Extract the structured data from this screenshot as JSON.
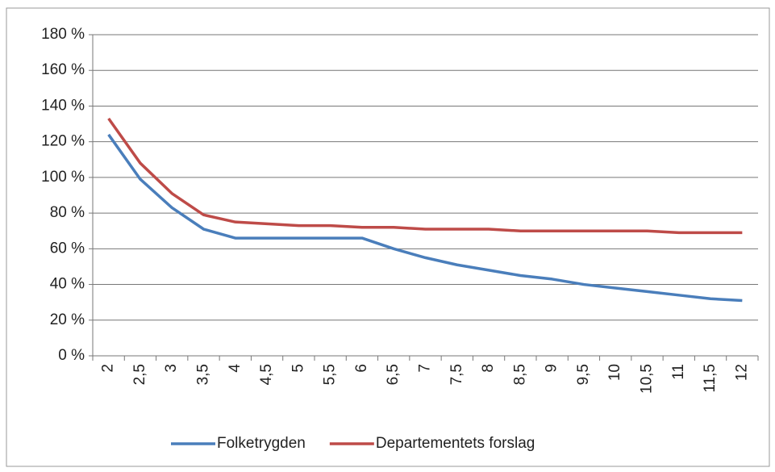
{
  "chart_data": {
    "type": "line",
    "categories": [
      "2",
      "2,5",
      "3",
      "3,5",
      "4",
      "4,5",
      "5",
      "5,5",
      "6",
      "6,5",
      "7",
      "7,5",
      "8",
      "8,5",
      "9",
      "9,5",
      "10",
      "10,5",
      "11",
      "11,5",
      "12"
    ],
    "series": [
      {
        "name": "Folketrygden",
        "color": "#4a7ebb",
        "values": [
          124,
          99,
          83,
          71,
          66,
          66,
          66,
          66,
          66,
          60,
          55,
          51,
          48,
          45,
          43,
          40,
          38,
          36,
          34,
          32,
          31
        ]
      },
      {
        "name": "Departementets forslag",
        "color": "#be4b48",
        "values": [
          133,
          108,
          91,
          79,
          75,
          74,
          73,
          73,
          72,
          72,
          71,
          71,
          71,
          70,
          70,
          70,
          70,
          70,
          69,
          69,
          69
        ]
      }
    ],
    "ylim": [
      0,
      180
    ],
    "yticks": [
      {
        "value": 0,
        "label": "0 %"
      },
      {
        "value": 20,
        "label": "20 %"
      },
      {
        "value": 40,
        "label": "40 %"
      },
      {
        "value": 60,
        "label": "60 %"
      },
      {
        "value": 80,
        "label": "80 %"
      },
      {
        "value": 100,
        "label": "100 %"
      },
      {
        "value": 120,
        "label": "120 %"
      },
      {
        "value": 140,
        "label": "140 %"
      },
      {
        "value": 160,
        "label": "160 %"
      },
      {
        "value": 180,
        "label": "180 %"
      }
    ],
    "grid": true,
    "legend": "bottom"
  }
}
